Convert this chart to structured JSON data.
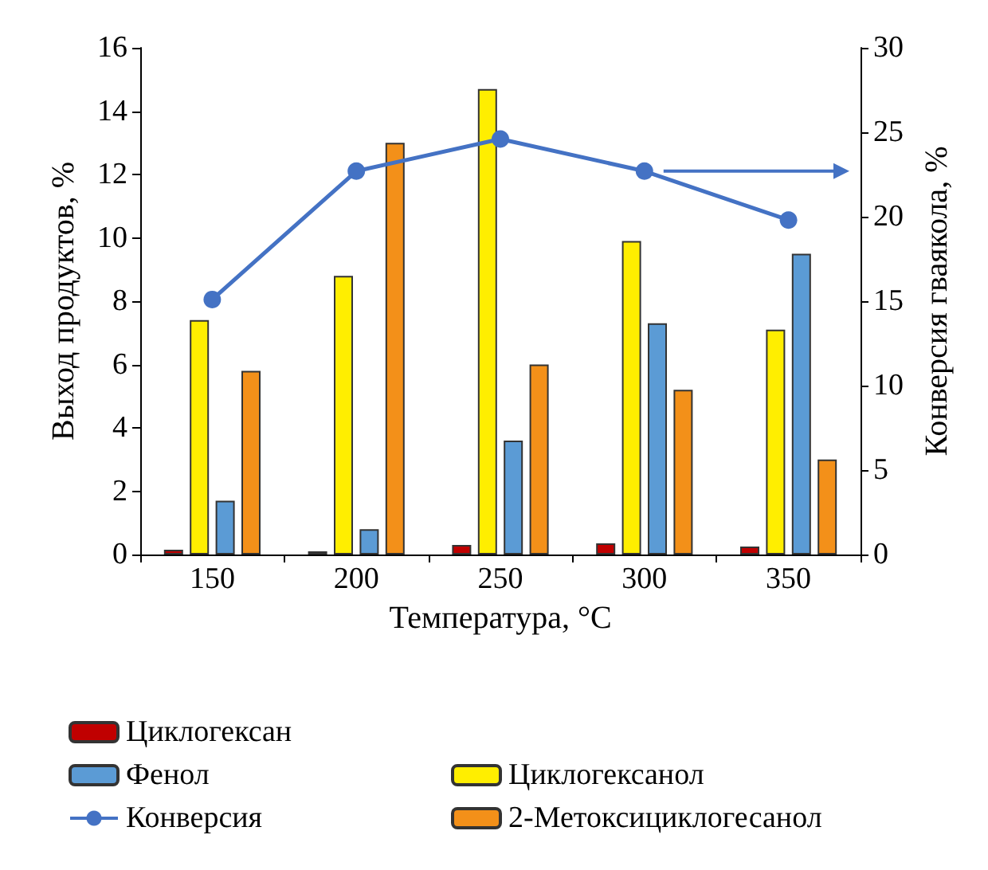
{
  "chart_data": {
    "type": "bar",
    "xlabel": "Температура, °C",
    "ylabel": "Выход продуктов, %",
    "y2label": "Конверсия гваякола, %",
    "categories": [
      "150",
      "200",
      "250",
      "300",
      "350"
    ],
    "series": [
      {
        "name": "Циклогексан",
        "color": "#c00000",
        "values": [
          0.15,
          0.1,
          0.3,
          0.35,
          0.25
        ]
      },
      {
        "name": "Циклогексанол",
        "color": "#ffee00",
        "values": [
          7.4,
          8.8,
          14.7,
          9.9,
          7.1
        ]
      },
      {
        "name": "Фенол",
        "color": "#5b9bd5",
        "values": [
          1.7,
          0.8,
          3.6,
          7.3,
          9.5
        ]
      },
      {
        "name": "2-Метоксициклогесанол",
        "color": "#f39019",
        "values": [
          5.8,
          13.0,
          6.0,
          5.2,
          3.0
        ]
      },
      {
        "name": "Конверсия",
        "type": "line",
        "axis": "y2",
        "color": "#4472c4",
        "marker": "circle",
        "values": [
          15.1,
          22.7,
          24.6,
          22.7,
          19.8
        ]
      }
    ],
    "ylim": [
      0,
      16
    ],
    "yticks": [
      0,
      2,
      4,
      6,
      8,
      10,
      12,
      14,
      16
    ],
    "y2lim": [
      0,
      30
    ],
    "y2ticks": [
      0,
      5,
      10,
      15,
      20,
      25,
      30
    ],
    "grid": false,
    "legend": "bottom"
  }
}
